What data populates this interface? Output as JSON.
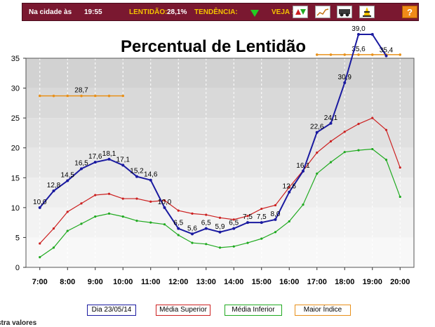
{
  "header": {
    "city_label": "Na cidade às",
    "time": "19:55",
    "slowness_label": "LENTIDÃO:",
    "slowness_value": "28,1%",
    "trend_label": "TENDÊNCIA:",
    "trend_icon": "down-triangle-icon",
    "see_label": "VEJA :",
    "view_icons": [
      "updown-arrows-icon",
      "line-chart-icon",
      "vehicles-icon",
      "traffic-cone-icon"
    ],
    "help_label": "?"
  },
  "chart_data": {
    "type": "line",
    "title": "Percentual de Lentidão",
    "ylim": [
      0,
      35
    ],
    "yticks": [
      0,
      5,
      10,
      15,
      20,
      25,
      30,
      35
    ],
    "x_range": [
      6.5,
      20.5
    ],
    "xticks": [
      7,
      8,
      9,
      10,
      11,
      12,
      13,
      14,
      15,
      16,
      17,
      18,
      19,
      20
    ],
    "xtick_labels": [
      "7:00",
      "8:00",
      "9:00",
      "10:00",
      "11:00",
      "12:00",
      "13:00",
      "14:00",
      "15:00",
      "16:00",
      "17:00",
      "18:00",
      "19:00",
      "20:00"
    ],
    "series": [
      {
        "name": "Dia 23/05/14",
        "color": "#1a1aa0",
        "x": [
          7.0,
          7.5,
          8.0,
          8.5,
          9.0,
          9.5,
          10.0,
          10.5,
          11.0,
          11.5,
          12.0,
          12.5,
          13.0,
          13.5,
          14.0,
          14.5,
          15.0,
          15.5,
          16.0,
          16.5,
          17.0,
          17.5,
          18.0,
          18.5,
          19.0,
          19.5
        ],
        "values": [
          10.0,
          12.8,
          14.5,
          16.5,
          17.6,
          18.1,
          17.1,
          15.2,
          14.6,
          10.0,
          6.5,
          5.6,
          6.5,
          5.9,
          6.5,
          7.5,
          7.5,
          8.0,
          12.6,
          16.1,
          22.6,
          24.1,
          30.9,
          39.0,
          39.0,
          35.4
        ],
        "labels": [
          "10,0",
          "12,8",
          "14,5",
          "16,5",
          "17,6",
          "18,1",
          "17,1",
          "15,2",
          "14,6",
          "10,0",
          "6,5",
          "5,6",
          "6,5",
          "5,9",
          "6,5",
          "7,5",
          "7,5",
          "8,0",
          "12,6",
          "16,1",
          "22,6",
          "24,1",
          "30,9",
          "39,0",
          "",
          "35,4"
        ]
      },
      {
        "name": "Média Superior",
        "color": "#cc2020",
        "x": [
          7.0,
          7.5,
          8.0,
          8.5,
          9.0,
          9.5,
          10.0,
          10.5,
          11.0,
          11.5,
          12.0,
          12.5,
          13.0,
          13.5,
          14.0,
          14.5,
          15.0,
          15.5,
          16.0,
          16.5,
          17.0,
          17.5,
          18.0,
          18.5,
          19.0,
          19.5,
          20.0
        ],
        "values": [
          4.0,
          6.5,
          9.3,
          10.7,
          12.1,
          12.3,
          11.5,
          11.5,
          11.0,
          11.2,
          9.5,
          9.0,
          8.8,
          8.3,
          8.0,
          8.6,
          9.8,
          10.4,
          13.4,
          16.2,
          19.2,
          21.1,
          22.7,
          24.0,
          25.0,
          23.0,
          16.7
        ]
      },
      {
        "name": "Média Inferior",
        "color": "#20aa20",
        "x": [
          7.0,
          7.5,
          8.0,
          8.5,
          9.0,
          9.5,
          10.0,
          10.5,
          11.0,
          11.5,
          12.0,
          12.5,
          13.0,
          13.5,
          14.0,
          14.5,
          15.0,
          15.5,
          16.0,
          16.5,
          17.0,
          17.5,
          18.0,
          18.5,
          19.0,
          19.5,
          20.0
        ],
        "values": [
          1.7,
          3.3,
          6.1,
          7.3,
          8.5,
          9.0,
          8.5,
          7.8,
          7.5,
          7.2,
          5.4,
          4.1,
          3.9,
          3.3,
          3.5,
          4.1,
          4.8,
          5.9,
          7.7,
          10.5,
          15.7,
          17.6,
          19.3,
          19.6,
          19.8,
          18.0,
          11.8
        ]
      },
      {
        "name": "Maior Índice",
        "color": "#e8901a",
        "segments": [
          {
            "x": [
              7.0,
              7.5,
              8.0,
              8.5,
              9.0,
              9.5,
              10.0
            ],
            "value": 28.7,
            "label": "28,7",
            "label_at": 8.5
          },
          {
            "x": [
              17.0,
              17.5,
              18.0,
              18.5,
              19.0,
              19.5,
              20.0
            ],
            "value": 35.6,
            "label": "35,6",
            "label_at": 18.5
          }
        ]
      }
    ],
    "legend": [
      "Dia 23/05/14",
      "Média Superior",
      "Média Inferior",
      "Maior Índice"
    ],
    "legend_position": "bottom",
    "grid": "vertical dashed"
  },
  "footer_text": "stra valores"
}
